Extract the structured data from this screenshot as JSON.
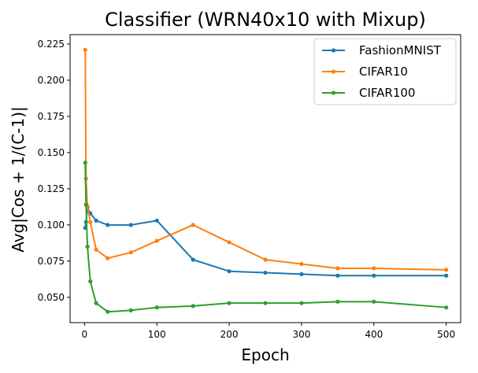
{
  "chart_data": {
    "type": "line",
    "title": "Classifier (WRN40x10 with Mixup)",
    "xlabel": "Epoch",
    "ylabel": "Avg|Cos + 1/(C-1)|",
    "xlim": [
      -20,
      520
    ],
    "ylim": [
      0.0325,
      0.2315
    ],
    "xticks": [
      0,
      100,
      200,
      300,
      400,
      500
    ],
    "yticks": [
      0.05,
      0.075,
      0.1,
      0.125,
      0.15,
      0.175,
      0.2,
      0.225
    ],
    "xtick_labels": [
      "0",
      "100",
      "200",
      "300",
      "400",
      "500"
    ],
    "ytick_labels": [
      "0.050",
      "0.075",
      "0.100",
      "0.125",
      "0.150",
      "0.175",
      "0.200",
      "0.225"
    ],
    "grid": false,
    "legend_position": "top-right",
    "x": [
      1,
      2,
      4,
      8,
      16,
      32,
      64,
      100,
      150,
      200,
      250,
      300,
      350,
      400,
      500
    ],
    "series": [
      {
        "name": "FashionMNIST",
        "color": "#1f77b4",
        "values": [
          0.098,
          0.102,
          0.112,
          0.108,
          0.103,
          0.1,
          0.1,
          0.103,
          0.076,
          0.068,
          0.067,
          0.066,
          0.065,
          0.065,
          0.065
        ]
      },
      {
        "name": "CIFAR10",
        "color": "#ff7f0e",
        "values": [
          0.221,
          0.132,
          0.113,
          0.102,
          0.083,
          0.077,
          0.081,
          0.089,
          0.1,
          0.088,
          0.076,
          0.073,
          0.07,
          0.07,
          0.069
        ]
      },
      {
        "name": "CIFAR100",
        "color": "#2ca02c",
        "values": [
          0.143,
          0.114,
          0.085,
          0.061,
          0.046,
          0.04,
          0.041,
          0.043,
          0.044,
          0.046,
          0.046,
          0.046,
          0.047,
          0.047,
          0.043
        ]
      }
    ]
  }
}
